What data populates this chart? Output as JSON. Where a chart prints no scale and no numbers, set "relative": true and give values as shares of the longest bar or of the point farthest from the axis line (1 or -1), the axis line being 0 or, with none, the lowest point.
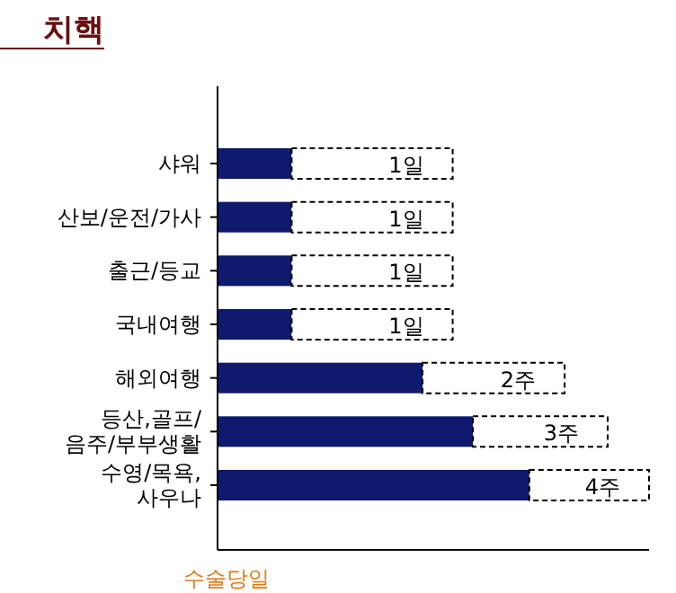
{
  "chart_data": {
    "type": "bar",
    "title": "치핵",
    "xlabel": "수술당일",
    "orientation": "horizontal",
    "stacked": true,
    "relative": true,
    "categories": [
      "샤워",
      "산보/운전/가사",
      "출근/등교",
      "국내여행",
      "해외여행",
      "등산,골프/\n음주/부부생활",
      "수영/목욕,\n사우나"
    ],
    "series": [
      {
        "color": "#0d1a6e",
        "values": [
          0.17,
          0.17,
          0.17,
          0.17,
          0.474,
          0.591,
          0.722
        ]
      },
      {
        "color": "#ffffff",
        "line_style": "dashed",
        "values": [
          0.374,
          0.374,
          0.374,
          0.374,
          0.33,
          0.313,
          0.278
        ]
      }
    ],
    "annotations": [
      {
        "text": "1일",
        "x": 0.544,
        "y": "샤워"
      },
      {
        "text": "1일",
        "x": 0.544,
        "y": "산보/운전/가사"
      },
      {
        "text": "1일",
        "x": 0.544,
        "y": "출근/등교"
      },
      {
        "text": "1일",
        "x": 0.544,
        "y": "국내여행"
      },
      {
        "text": "2주",
        "x": 0.804,
        "y": "해외여행"
      },
      {
        "text": "3주",
        "x": 0.904,
        "y": "등산,골프/\n음주/부부생활"
      },
      {
        "text": "4주",
        "x": 1.0,
        "y": "수영/목욕,\n사우나"
      }
    ]
  }
}
